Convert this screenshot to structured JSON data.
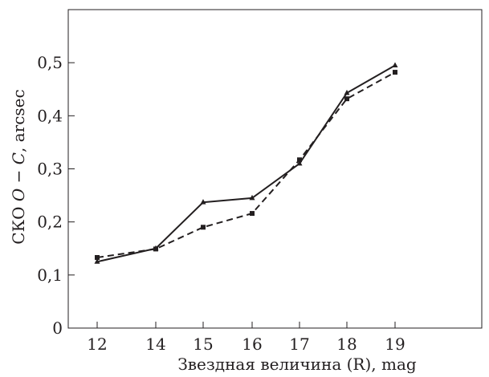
{
  "chart_data": {
    "type": "line",
    "title": "",
    "xlabel": "Звездная величина (R), mag",
    "ylabel": {
      "prefix": "СКО ",
      "italic": "O − C",
      "suffix": ", arcsec"
    },
    "categories": [
      "12",
      "14",
      "15",
      "16",
      "17",
      "18",
      "19"
    ],
    "ylim": [
      0,
      0.6
    ],
    "yticks": [
      {
        "value": 0,
        "label": "0"
      },
      {
        "value": 0.1,
        "label": "0,1"
      },
      {
        "value": 0.2,
        "label": "0,2"
      },
      {
        "value": 0.3,
        "label": "0,3"
      },
      {
        "value": 0.4,
        "label": "0,4"
      },
      {
        "value": 0.5,
        "label": "0,5"
      }
    ],
    "grid": false,
    "legend": "none",
    "series": [
      {
        "style": "solid",
        "marker": "triangle",
        "color": "#231f20",
        "values": [
          0.125,
          0.15,
          0.237,
          0.245,
          0.31,
          0.443,
          0.495
        ]
      },
      {
        "style": "dashed",
        "marker": "square",
        "color": "#231f20",
        "values": [
          0.133,
          0.149,
          0.19,
          0.216,
          0.317,
          0.432,
          0.482
        ]
      }
    ]
  }
}
